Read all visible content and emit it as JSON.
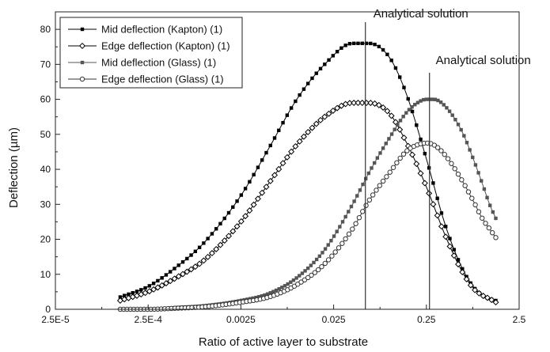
{
  "chart_data": {
    "type": "scatter",
    "title": "",
    "xlabel": "Ratio of active layer to substrate",
    "ylabel": "Deflection (µm)",
    "x_scale": "log",
    "xlim": [
      2.5e-05,
      2.5
    ],
    "ylim": [
      0,
      85
    ],
    "x_ticks": [
      2.5e-05,
      0.00025,
      0.0025,
      0.025,
      0.25,
      2.5
    ],
    "x_tick_labels": [
      "2.5E-5",
      "2.5E-4",
      "0.0025",
      "0.025",
      "0.25",
      "2.5"
    ],
    "y_ticks": [
      0,
      10,
      20,
      30,
      40,
      50,
      60,
      70,
      80
    ],
    "grid": false,
    "legend_position": "top-left",
    "series": [
      {
        "name": "Mid deflection (Kapton) (1)",
        "marker": "filled-square",
        "color": "#000000",
        "x": [
          0.000125,
          0.00025,
          0.0005,
          0.001,
          0.0025,
          0.005,
          0.01,
          0.02,
          0.04,
          0.06,
          0.1,
          0.15,
          0.25,
          0.4,
          0.6,
          0.8,
          1.0,
          1.2,
          1.4
        ],
        "y": [
          3.5,
          6.5,
          12,
          19,
          32.5,
          46,
          60,
          70,
          76,
          76,
          72,
          62,
          43,
          24,
          12,
          6.5,
          4,
          3,
          2.5
        ]
      },
      {
        "name": "Edge deflection (Kapton) (1)",
        "marker": "open-diamond",
        "color": "#000000",
        "x": [
          0.000125,
          0.00025,
          0.0005,
          0.001,
          0.0025,
          0.005,
          0.01,
          0.02,
          0.04,
          0.06,
          0.1,
          0.15,
          0.25,
          0.4,
          0.6,
          0.8,
          1.0,
          1.2,
          1.4
        ],
        "y": [
          2.5,
          5,
          9,
          14,
          25,
          36,
          47,
          55,
          59,
          59,
          56,
          48,
          35,
          21,
          11,
          6,
          4,
          3,
          2
        ]
      },
      {
        "name": "Mid deflection (Glass) (1)",
        "marker": "filled-square",
        "color": "#555555",
        "x": [
          0.000125,
          0.00025,
          0.0005,
          0.001,
          0.0025,
          0.005,
          0.01,
          0.02,
          0.04,
          0.06,
          0.1,
          0.15,
          0.2,
          0.25,
          0.3,
          0.4,
          0.6,
          0.8,
          1.0,
          1.2,
          1.4
        ],
        "y": [
          0,
          0,
          0.5,
          1,
          2.5,
          4.5,
          9,
          17,
          30,
          39,
          49,
          56,
          59,
          60,
          60,
          58,
          51,
          43,
          36,
          30,
          26
        ]
      },
      {
        "name": "Edge deflection (Glass) (1)",
        "marker": "open-circle",
        "color": "#333333",
        "x": [
          0.000125,
          0.00025,
          0.0005,
          0.001,
          0.0025,
          0.005,
          0.01,
          0.02,
          0.04,
          0.06,
          0.1,
          0.15,
          0.2,
          0.25,
          0.3,
          0.4,
          0.6,
          0.8,
          1.0,
          1.2,
          1.4
        ],
        "y": [
          0,
          0,
          0.3,
          0.7,
          2,
          3.5,
          7,
          13,
          23,
          31,
          39,
          45,
          47,
          47.5,
          47,
          44,
          37,
          31,
          26,
          23,
          20.5
        ]
      }
    ],
    "annotations": [
      {
        "text": "Analytical solution",
        "x": 0.055
      },
      {
        "text": "Analytical solution",
        "x": 0.27
      }
    ]
  }
}
